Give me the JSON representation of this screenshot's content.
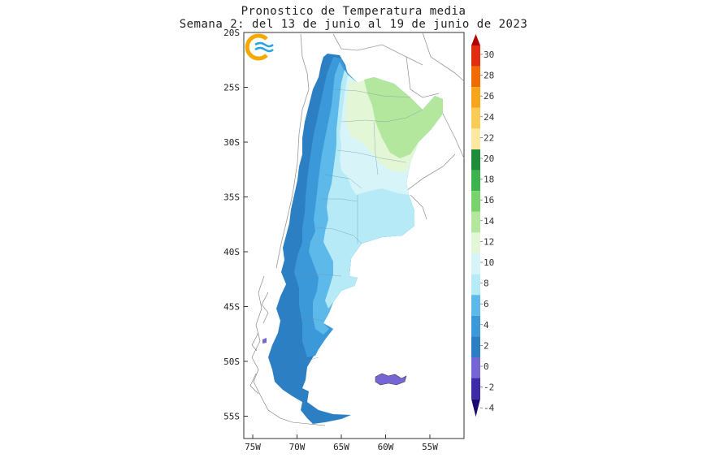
{
  "title": {
    "line1": "Pronostico de Temperatura media",
    "line2": "Semana 2: del 13 de junio al 19 de junio de 2023"
  },
  "axes": {
    "lat_labels": [
      "20S",
      "25S",
      "30S",
      "35S",
      "40S",
      "45S",
      "50S",
      "55S"
    ],
    "lon_labels": [
      "75W",
      "70W",
      "65W",
      "60W",
      "55W"
    ]
  },
  "logo": {
    "name": "logo-icon",
    "colors": [
      "#f5a800",
      "#29a3dd"
    ]
  },
  "colorbar": {
    "labels": [
      "30",
      "28",
      "26",
      "24",
      "22",
      "20",
      "18",
      "16",
      "14",
      "12",
      "10",
      "8",
      "6",
      "4",
      "2",
      "0",
      "-2",
      "-4"
    ],
    "colors": [
      "#b30000",
      "#e32d10",
      "#f06c00",
      "#f7a61c",
      "#f9cd55",
      "#fbe9a3",
      "#1e8c3a",
      "#3cb34c",
      "#79d26e",
      "#b3e79e",
      "#e3f7d6",
      "#d7f4f9",
      "#b5eaf6",
      "#5cb9ea",
      "#3b99d9",
      "#2c7fc2",
      "#7665d4",
      "#3d2aa6",
      "#1a0b74"
    ]
  },
  "legend_levels": {
    "0_to_2": "#2c7fc2",
    "2_to_4": "#3b99d9",
    "4_to_6": "#5cb9ea",
    "6_to_8": "#b5eaf6",
    "8_to_10": "#d7f4f9",
    "10_to_12": "#e3f7d6",
    "12_to_14": "#b3e79e",
    "below_0": "#7665d4"
  }
}
